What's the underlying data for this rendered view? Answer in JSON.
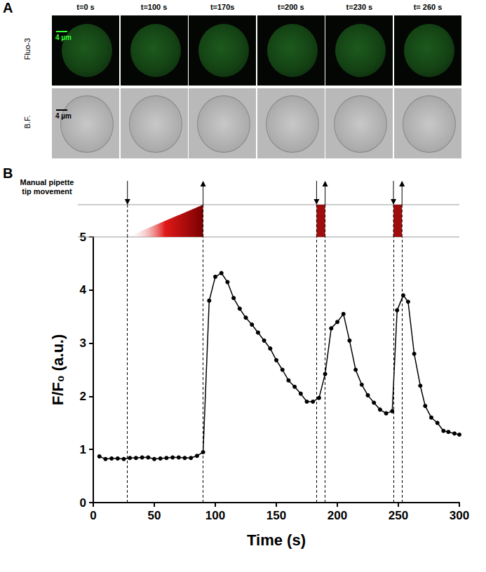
{
  "panel_labels": [
    "A",
    "B"
  ],
  "panel_a": {
    "times": [
      "t=0 s",
      "t=100 s",
      "t=170s",
      "t=200 s",
      "t=230 s",
      "t= 260 s"
    ],
    "rows": [
      "Fluo-3",
      "B.F."
    ],
    "scale_bar": "4 µm"
  },
  "chart_data": {
    "type": "line",
    "color": "#000000",
    "marker": "circle",
    "grid": false,
    "xlabel": "Time (s)",
    "ylabel": "F/F₀ (a.u.)",
    "x": [
      5,
      10,
      15,
      20,
      25,
      30,
      35,
      40,
      45,
      50,
      55,
      60,
      65,
      70,
      75,
      80,
      85,
      90,
      95,
      100,
      105,
      110,
      115,
      120,
      125,
      130,
      135,
      140,
      145,
      150,
      155,
      160,
      165,
      170,
      175,
      180,
      185,
      190,
      195,
      200,
      205,
      210,
      215,
      220,
      225,
      230,
      235,
      240,
      245,
      249,
      254,
      258,
      263,
      268,
      272,
      277,
      282,
      287,
      291,
      296,
      300
    ],
    "values": [
      0.87,
      0.82,
      0.83,
      0.83,
      0.82,
      0.84,
      0.84,
      0.85,
      0.85,
      0.82,
      0.83,
      0.84,
      0.85,
      0.85,
      0.84,
      0.84,
      0.88,
      0.95,
      3.8,
      4.25,
      4.32,
      4.15,
      3.85,
      3.65,
      3.48,
      3.35,
      3.2,
      3.05,
      2.9,
      2.68,
      2.5,
      2.3,
      2.18,
      2.05,
      1.9,
      1.9,
      1.97,
      2.42,
      3.28,
      3.4,
      3.55,
      3.05,
      2.5,
      2.22,
      2.02,
      1.88,
      1.75,
      1.68,
      1.72,
      3.62,
      3.9,
      3.78,
      2.8,
      2.2,
      1.82,
      1.6,
      1.5,
      1.35,
      1.33,
      1.3,
      1.28
    ],
    "xlim": [
      0,
      300
    ],
    "xticks": [
      0,
      50,
      100,
      150,
      200,
      250,
      300
    ],
    "ylim": [
      0,
      5
    ],
    "yticks": [
      0,
      1,
      2,
      3,
      4,
      5
    ],
    "annotations": [
      {
        "text": "Manual pipette tip movement",
        "ramp": [
          28,
          90
        ],
        "pulses": [
          [
            183,
            190
          ],
          [
            246,
            253
          ]
        ]
      }
    ]
  }
}
